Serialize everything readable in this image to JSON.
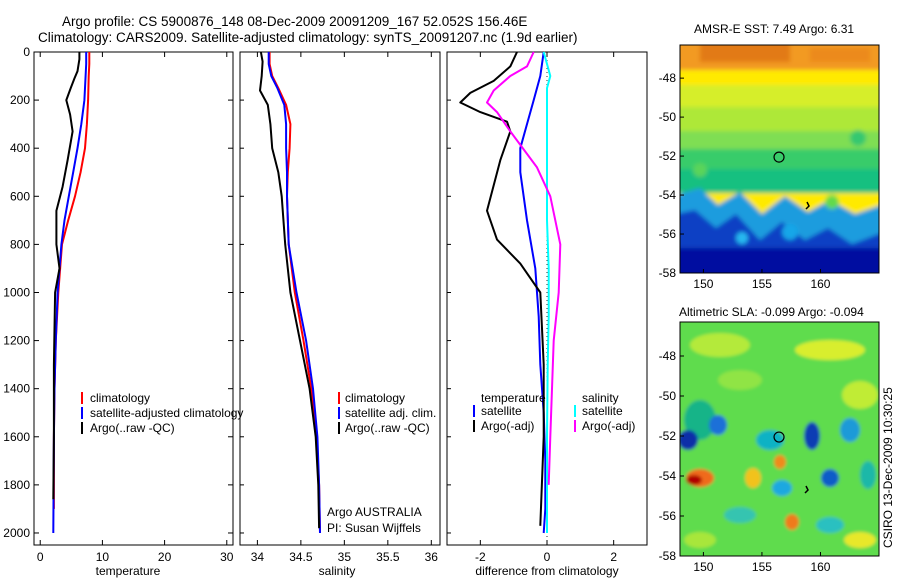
{
  "header": {
    "line1": "Argo profile: CS 5900876_148 08-Dec-2009 20091209_167 52.052S 156.46E",
    "line2": "Climatology: CARS2009. Satellite-adjusted climatology: synTS_20091207.nc (1.9d earlier)"
  },
  "sst_map": {
    "title": "AMSR-E SST: 7.49 Argo: 6.31",
    "xticks": [
      "150",
      "155",
      "160"
    ],
    "yticks": [
      "-48",
      "-50",
      "-52",
      "-54",
      "-56",
      "-58"
    ],
    "xrange": [
      148,
      165
    ],
    "yrange": [
      -58,
      -46.3
    ],
    "float_lon": 156.46,
    "float_lat": -52.052
  },
  "sla_map": {
    "title": "Altimetric SLA: -0.099 Argo: -0.094",
    "xticks": [
      "150",
      "155",
      "160"
    ],
    "yticks": [
      "-48",
      "-50",
      "-52",
      "-54",
      "-56",
      "-58"
    ],
    "xrange": [
      148,
      165
    ],
    "yrange": [
      -58,
      -46.3
    ],
    "float_lon": 156.46,
    "float_lat": -52.052
  },
  "stamp": "CSIRO 13-Dec-2009 10:30:25",
  "colors": {
    "climatology": "#ff0000",
    "satellite": "#0000ff",
    "argo": "#000000",
    "satellite_salinity": "#00ffff",
    "argo_salinity_adj": "#ff00ff"
  },
  "chart_data": [
    {
      "type": "line",
      "xlabel": "temperature",
      "ylabel": "",
      "xlim": [
        -1,
        31
      ],
      "ylim": [
        2050,
        0
      ],
      "xticks": [
        "0",
        "10",
        "20",
        "30"
      ],
      "yticks": [
        "0",
        "200",
        "400",
        "600",
        "800",
        "1000",
        "1200",
        "1400",
        "1600",
        "1800",
        "2000"
      ],
      "legend": {
        "placement": "bottom-right",
        "entries": [
          "climatology",
          "satellite-adjusted climatology",
          "Argo(..raw -QC)"
        ]
      },
      "series": [
        {
          "name": "climatology",
          "color": "#ff0000",
          "x": [
            7.9,
            7.9,
            7.8,
            7.7,
            7.5,
            7.2,
            6.5,
            5.6,
            4.5,
            3.5,
            2.9,
            2.5,
            2.3,
            2.2,
            2.2
          ],
          "y": [
            0,
            50,
            100,
            200,
            300,
            400,
            500,
            600,
            700,
            800,
            1000,
            1200,
            1400,
            1600,
            1900
          ]
        },
        {
          "name": "satellite-adjusted climatology",
          "color": "#0000ff",
          "x": [
            7.4,
            7.4,
            7.3,
            7.1,
            6.6,
            6.0,
            5.3,
            4.6,
            3.9,
            3.4,
            2.8,
            2.5,
            2.3,
            2.2,
            2.1
          ],
          "y": [
            0,
            50,
            100,
            200,
            300,
            400,
            500,
            600,
            700,
            800,
            1000,
            1200,
            1400,
            1600,
            2000
          ]
        },
        {
          "name": "Argo(..raw -QC)",
          "color": "#000000",
          "x": [
            6.3,
            6.3,
            6.0,
            5.5,
            4.9,
            4.2,
            4.8,
            5.2,
            4.4,
            3.6,
            2.6,
            2.6,
            3.1,
            2.4,
            2.2,
            2.2,
            2.1
          ],
          "y": [
            0,
            30,
            80,
            110,
            150,
            200,
            260,
            330,
            450,
            560,
            660,
            800,
            900,
            1000,
            1300,
            1600,
            1860
          ]
        }
      ]
    },
    {
      "type": "line",
      "xlabel": "salinity",
      "ylabel": "",
      "xlim": [
        33.8,
        36.1
      ],
      "ylim": [
        2050,
        0
      ],
      "xticks": [
        "34",
        "34.5",
        "35",
        "35.5",
        "36"
      ],
      "yticks": [],
      "legend": {
        "placement": "bottom-right",
        "entries": [
          "climatology",
          "satellite adj. clim.",
          "Argo(..raw -QC)"
        ]
      },
      "annotation": [
        "Argo AUSTRALIA",
        "PI: Susan Wijffels"
      ],
      "series": [
        {
          "name": "climatology",
          "color": "#ff0000",
          "x": [
            34.14,
            34.14,
            34.17,
            34.24,
            34.33,
            34.38,
            34.37,
            34.35,
            34.34,
            34.36,
            34.43,
            34.53,
            34.62,
            34.68,
            34.71,
            34.72
          ],
          "y": [
            0,
            50,
            100,
            150,
            220,
            300,
            400,
            500,
            600,
            800,
            1000,
            1200,
            1400,
            1600,
            1800,
            2000
          ]
        },
        {
          "name": "satellite adj. clim.",
          "color": "#0000ff",
          "x": [
            34.13,
            34.13,
            34.16,
            34.23,
            34.31,
            34.33,
            34.33,
            34.34,
            34.34,
            34.36,
            34.45,
            34.56,
            34.64,
            34.69,
            34.71,
            34.72
          ],
          "y": [
            0,
            50,
            100,
            150,
            220,
            300,
            400,
            500,
            600,
            800,
            1000,
            1200,
            1400,
            1600,
            1800,
            2000
          ]
        },
        {
          "name": "Argo(..raw -QC)",
          "color": "#000000",
          "x": [
            34.04,
            34.06,
            34.05,
            34.03,
            34.12,
            34.15,
            34.17,
            34.24,
            34.28,
            34.32,
            34.38,
            34.49,
            34.6,
            34.67,
            34.7,
            34.71
          ],
          "y": [
            0,
            40,
            100,
            160,
            220,
            300,
            400,
            500,
            600,
            800,
            1000,
            1200,
            1400,
            1600,
            1800,
            1980
          ]
        }
      ]
    },
    {
      "type": "line",
      "xlabel": "difference from climatology",
      "ylabel": "",
      "xlim": [
        -3,
        3
      ],
      "ylim": [
        2050,
        0
      ],
      "xticks": [
        "-2",
        "0",
        "2"
      ],
      "yticks": [],
      "legend": {
        "placement": "bottom",
        "entries": [
          "temperature",
          "satellite",
          "Argo(-adj)",
          "salinity",
          "satellite",
          "Argo(-adj)"
        ]
      },
      "series": [
        {
          "name": "satellite",
          "group": "temperature",
          "color": "#0000ff",
          "x": [
            -0.1,
            -0.2,
            -0.4,
            -0.6,
            -0.8,
            -0.8,
            -0.6,
            -0.35,
            -0.25,
            -0.2,
            -0.1,
            -0.05,
            -0.05,
            -0.1
          ],
          "y": [
            0,
            100,
            200,
            300,
            400,
            500,
            700,
            900,
            1100,
            1300,
            1500,
            1700,
            1900,
            2000
          ]
        },
        {
          "name": "Argo(-adj)",
          "group": "temperature",
          "color": "#000000",
          "x": [
            -0.9,
            -1.1,
            -1.6,
            -2.3,
            -2.6,
            -2.0,
            -1.2,
            -1.1,
            -1.4,
            -1.8,
            -1.5,
            -0.8,
            -0.2,
            -0.1,
            -0.1,
            -0.2
          ],
          "y": [
            0,
            60,
            120,
            170,
            210,
            250,
            290,
            330,
            450,
            660,
            780,
            880,
            1000,
            1300,
            1600,
            1970
          ]
        },
        {
          "name": "satellite",
          "group": "salinity",
          "color": "#00ffff",
          "x": [
            -0.1,
            0.0,
            0.1,
            0.0,
            0.0,
            0.0,
            0.0,
            0.05,
            0.05,
            0.02,
            0.0,
            0.0,
            0.0
          ],
          "y": [
            0,
            50,
            100,
            150,
            300,
            500,
            700,
            900,
            1100,
            1300,
            1600,
            1800,
            2000
          ]
        },
        {
          "name": "Argo(-adj)",
          "group": "salinity",
          "color": "#ff00ff",
          "x": [
            -0.4,
            -0.6,
            -1.1,
            -1.6,
            -1.8,
            -1.5,
            -1.1,
            -0.3,
            0.1,
            0.4,
            0.35,
            0.2,
            0.15,
            0.1,
            0.05
          ],
          "y": [
            0,
            60,
            100,
            160,
            210,
            250,
            330,
            480,
            600,
            800,
            1000,
            1200,
            1400,
            1600,
            1800
          ]
        }
      ]
    }
  ]
}
